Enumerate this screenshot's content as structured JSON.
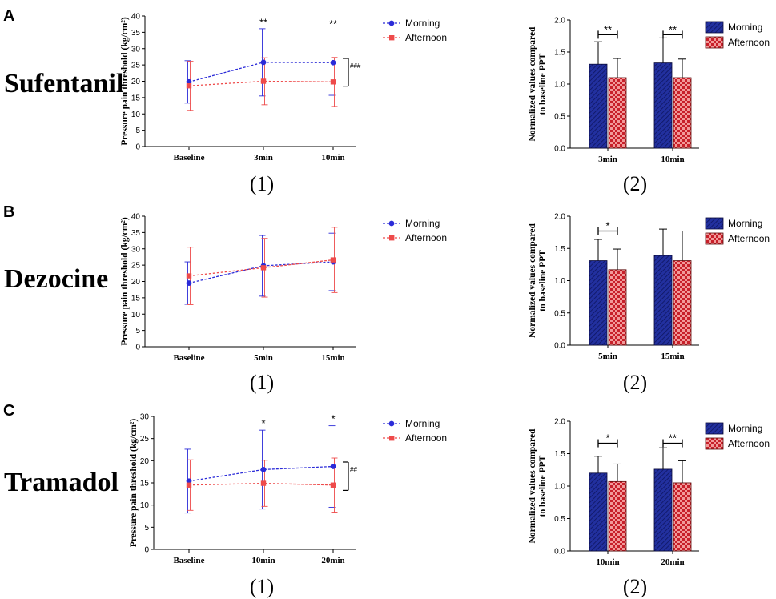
{
  "colors": {
    "morning": "#2b2bd8",
    "afternoon": "#ee4a4a",
    "morning_bar": "#1c2b9c",
    "morning_bar_stroke": "#0b0b3a",
    "afternoon_bar": "#e96a6a",
    "axis": "#000000"
  },
  "legend": {
    "morning": "Morning",
    "afternoon": "Afternoon"
  },
  "panels": [
    {
      "letter": "A",
      "drug": "Sufentanil",
      "line_subtitle": "(1)",
      "bar_subtitle": "(2)"
    },
    {
      "letter": "B",
      "drug": "Dezocine",
      "line_subtitle": "(1)",
      "bar_subtitle": "(2)"
    },
    {
      "letter": "C",
      "drug": "Tramadol",
      "line_subtitle": "(1)",
      "bar_subtitle": "(2)"
    }
  ],
  "chart_data": [
    {
      "type": "line",
      "panel": "A",
      "subtitle": "(1)",
      "categories": [
        "Baseline",
        "3min",
        "10min"
      ],
      "ylabel": "Pressure pain threshold (kg/cm²)",
      "ylim": [
        0,
        40
      ],
      "yticks": [
        0,
        5,
        10,
        15,
        20,
        25,
        30,
        35,
        40
      ],
      "series": [
        {
          "name": "Morning",
          "values": [
            19.8,
            25.8,
            25.7
          ],
          "err": [
            6.5,
            10.3,
            10.0
          ]
        },
        {
          "name": "Afternoon",
          "values": [
            18.6,
            20.0,
            19.8
          ],
          "err": [
            7.5,
            7.2,
            7.5
          ]
        }
      ],
      "annotations": [
        {
          "category": "3min",
          "text": "**",
          "y": 36.5
        },
        {
          "category": "10min",
          "text": "**",
          "y": 36.0
        }
      ],
      "bracket": {
        "y": [
          18.5,
          27.0
        ],
        "text": "###"
      }
    },
    {
      "type": "bar",
      "panel": "A",
      "subtitle": "(2)",
      "categories": [
        "3min",
        "10min"
      ],
      "ylabel": "Normalized values compared to baseline PPT",
      "ylim": [
        0,
        2.0
      ],
      "yticks": [
        0.0,
        0.5,
        1.0,
        1.5,
        2.0
      ],
      "series": [
        {
          "name": "Morning",
          "values": [
            1.31,
            1.33
          ],
          "err": [
            0.35,
            0.39
          ]
        },
        {
          "name": "Afternoon",
          "values": [
            1.1,
            1.1
          ],
          "err": [
            0.3,
            0.29
          ]
        }
      ],
      "significance": [
        {
          "category": "3min",
          "text": "**"
        },
        {
          "category": "10min",
          "text": "**"
        }
      ],
      "sig_y": 1.77
    },
    {
      "type": "line",
      "panel": "B",
      "subtitle": "(1)",
      "categories": [
        "Baseline",
        "5min",
        "15min"
      ],
      "ylabel": "Pressure pain threshold (kg/cm²)",
      "ylim": [
        0,
        40
      ],
      "yticks": [
        0,
        5,
        10,
        15,
        20,
        25,
        30,
        35,
        40
      ],
      "series": [
        {
          "name": "Morning",
          "values": [
            19.5,
            24.8,
            26.0
          ],
          "err": [
            6.5,
            9.3,
            8.8
          ]
        },
        {
          "name": "Afternoon",
          "values": [
            21.7,
            24.2,
            26.6
          ],
          "err": [
            8.8,
            9.0,
            10.0
          ]
        }
      ],
      "annotations": [],
      "bracket": null
    },
    {
      "type": "bar",
      "panel": "B",
      "subtitle": "(2)",
      "categories": [
        "5min",
        "15min"
      ],
      "ylabel": "Normalized values compared to baseline PPT",
      "ylim": [
        0,
        2.0
      ],
      "yticks": [
        0.0,
        0.5,
        1.0,
        1.5,
        2.0
      ],
      "series": [
        {
          "name": "Morning",
          "values": [
            1.31,
            1.39
          ],
          "err": [
            0.33,
            0.41
          ]
        },
        {
          "name": "Afternoon",
          "values": [
            1.17,
            1.31
          ],
          "err": [
            0.32,
            0.46
          ]
        }
      ],
      "significance": [
        {
          "category": "5min",
          "text": "*"
        }
      ],
      "sig_y": 1.77
    },
    {
      "type": "line",
      "panel": "C",
      "subtitle": "(1)",
      "categories": [
        "Baseline",
        "10min",
        "20min"
      ],
      "ylabel": "Pressure pain threshold (kg/cm²)",
      "ylim": [
        0,
        30
      ],
      "yticks": [
        0,
        5,
        10,
        15,
        20,
        25,
        30
      ],
      "series": [
        {
          "name": "Morning",
          "values": [
            15.4,
            18.0,
            18.7
          ],
          "err": [
            7.2,
            8.9,
            9.2
          ]
        },
        {
          "name": "Afternoon",
          "values": [
            14.5,
            14.9,
            14.5
          ],
          "err": [
            5.7,
            5.2,
            6.1
          ]
        }
      ],
      "annotations": [
        {
          "category": "10min",
          "text": "*",
          "y": 27.3
        },
        {
          "category": "20min",
          "text": "*",
          "y": 28.3
        }
      ],
      "bracket": {
        "y": [
          13.3,
          19.7
        ],
        "text": "##"
      }
    },
    {
      "type": "bar",
      "panel": "C",
      "subtitle": "(2)",
      "categories": [
        "10min",
        "20min"
      ],
      "ylabel": "Normalized values compared to baseline PPT",
      "ylim": [
        0,
        2.0
      ],
      "yticks": [
        0.0,
        0.5,
        1.0,
        1.5,
        2.0
      ],
      "series": [
        {
          "name": "Morning",
          "values": [
            1.2,
            1.26
          ],
          "err": [
            0.26,
            0.33
          ]
        },
        {
          "name": "Afternoon",
          "values": [
            1.07,
            1.05
          ],
          "err": [
            0.27,
            0.34
          ]
        }
      ],
      "significance": [
        {
          "category": "10min",
          "text": "*"
        },
        {
          "category": "20min",
          "text": "**"
        }
      ],
      "sig_y": 1.66
    }
  ]
}
